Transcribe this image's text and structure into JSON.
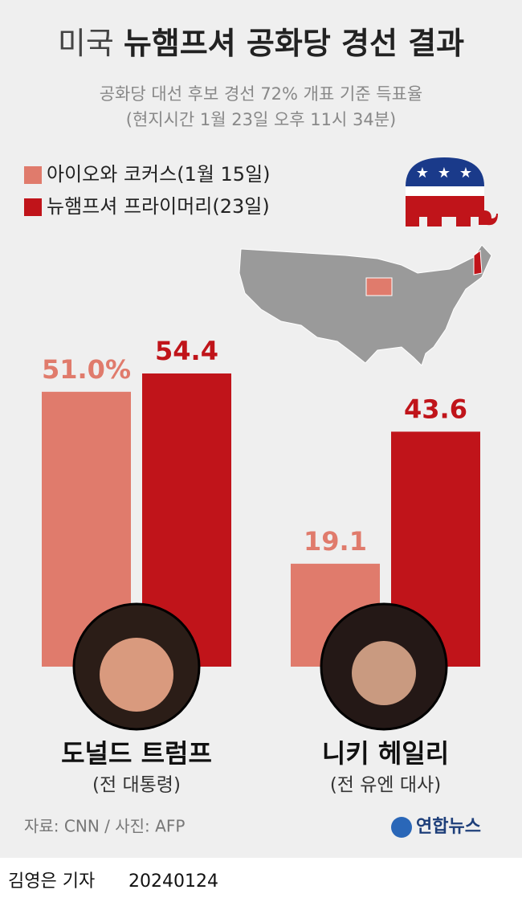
{
  "chart_data": {
    "type": "bar",
    "title_prefix": "미국",
    "title": "뉴햄프셔 공화당 경선 결과",
    "subtitle": [
      "공화당 대선 후보 경선 72% 개표 기준 득표율",
      "(현지시간 1월 23일 오후 11시 34분)"
    ],
    "categories": [
      "도널드 트럼프",
      "니키 헤일리"
    ],
    "category_notes": [
      "(전 대통령)",
      "(전 유엔 대사)"
    ],
    "series": [
      {
        "name": "아이오와 코커스(1월 15일)",
        "color": "#e07b6c",
        "values": [
          51.0,
          19.1
        ],
        "value_labels": [
          "51.0%",
          "19.1"
        ]
      },
      {
        "name": "뉴햄프셔 프라이머리(23일)",
        "color": "#c0141a",
        "values": [
          54.4,
          43.6
        ],
        "value_labels": [
          "54.4",
          "43.6"
        ]
      }
    ],
    "source": "자료: CNN / 사진: AFP",
    "logo": "연합뉴스",
    "byline": "김영은 기자",
    "date": "20240124"
  }
}
